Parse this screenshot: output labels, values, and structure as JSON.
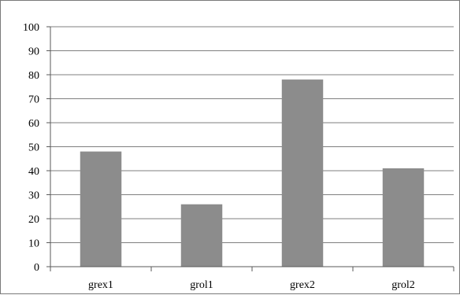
{
  "chart_data": {
    "type": "bar",
    "categories": [
      "grex1",
      "grol1",
      "grex2",
      "grol2"
    ],
    "values": [
      48,
      26,
      78,
      41
    ],
    "title": "",
    "xlabel": "",
    "ylabel": "",
    "ylim": [
      0,
      100
    ],
    "yticks": [
      0,
      10,
      20,
      30,
      40,
      50,
      60,
      70,
      80,
      90,
      100
    ],
    "grid": true,
    "legend": "none",
    "colors": {
      "bar": "#8c8c8c",
      "gridline": "#7f7f7f",
      "axis": "#5a5a5a",
      "frame": "#7a7a7a"
    }
  }
}
